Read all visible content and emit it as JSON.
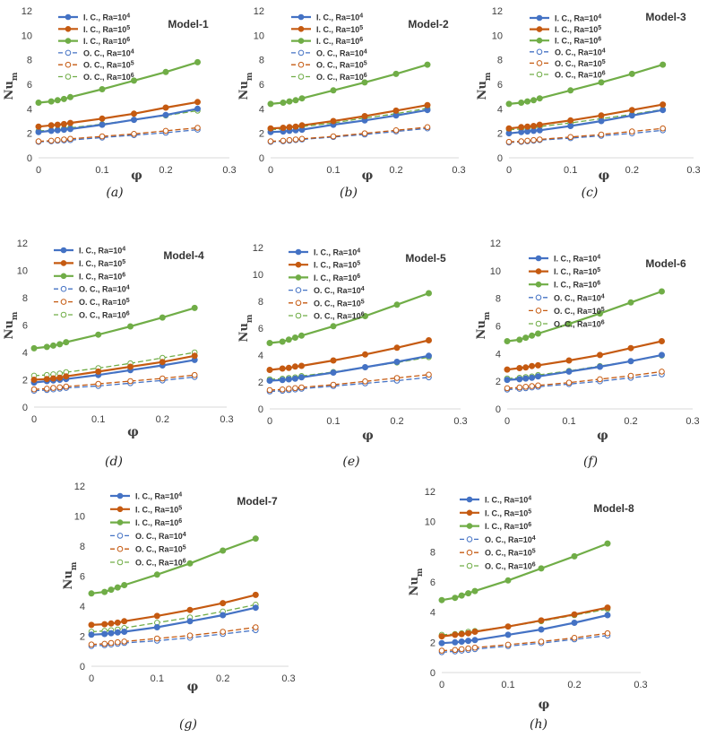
{
  "chart_data": [
    {
      "type": "line",
      "title": "Model-1",
      "caption": "(a)",
      "xlabel": "φ",
      "ylabel": "Nu",
      "ylabel_sub": "m",
      "xlim": [
        0,
        0.3
      ],
      "ylim": [
        0,
        12
      ],
      "xticks": [
        "0",
        "0.1",
        "0.2",
        "0.3"
      ],
      "yticks": [
        "0",
        "2",
        "4",
        "6",
        "8",
        "10",
        "12"
      ],
      "legend_position": "top-left",
      "x": [
        0,
        0.02,
        0.03,
        0.04,
        0.05,
        0.1,
        0.15,
        0.2,
        0.25
      ],
      "series": [
        {
          "name": "I. C.,  Ra=10⁴",
          "values": [
            2.1,
            2.2,
            2.25,
            2.3,
            2.35,
            2.7,
            3.1,
            3.5,
            4.0
          ]
        },
        {
          "name": "I. C.,  Ra=10⁵",
          "values": [
            2.55,
            2.65,
            2.7,
            2.75,
            2.85,
            3.2,
            3.6,
            4.1,
            4.55
          ]
        },
        {
          "name": "I. C.,  Ra=10⁶",
          "values": [
            4.5,
            4.6,
            4.7,
            4.8,
            4.95,
            5.6,
            6.3,
            7.0,
            7.8
          ]
        },
        {
          "name": "O. C., Ra=10⁴",
          "values": [
            1.3,
            1.35,
            1.4,
            1.42,
            1.45,
            1.65,
            1.85,
            2.05,
            2.3
          ]
        },
        {
          "name": "O. C., Ra=10⁵",
          "values": [
            1.35,
            1.4,
            1.45,
            1.5,
            1.55,
            1.75,
            1.95,
            2.2,
            2.45
          ]
        },
        {
          "name": "O. C., Ra=10⁶",
          "values": [
            2.2,
            2.25,
            2.3,
            2.4,
            2.45,
            2.75,
            3.1,
            3.45,
            3.85
          ]
        }
      ]
    },
    {
      "type": "line",
      "title": "Model-2",
      "caption": "(b)",
      "xlabel": "φ",
      "ylabel": "Nu",
      "ylabel_sub": "m",
      "xlim": [
        0,
        0.3
      ],
      "ylim": [
        0,
        12
      ],
      "xticks": [
        "0",
        "0.1",
        "0.2",
        "0.3"
      ],
      "yticks": [
        "0",
        "2",
        "4",
        "6",
        "8",
        "10",
        "12"
      ],
      "legend_position": "top-left",
      "x": [
        0,
        0.02,
        0.03,
        0.04,
        0.05,
        0.1,
        0.15,
        0.2,
        0.25
      ],
      "series": [
        {
          "name": "I. C.,  Ra=10⁴",
          "values": [
            2.1,
            2.15,
            2.2,
            2.25,
            2.3,
            2.7,
            3.05,
            3.45,
            3.9
          ]
        },
        {
          "name": "I. C.,  Ra=10⁵",
          "values": [
            2.4,
            2.45,
            2.5,
            2.55,
            2.65,
            3.0,
            3.4,
            3.85,
            4.3
          ]
        },
        {
          "name": "I. C.,  Ra=10⁶",
          "values": [
            4.4,
            4.5,
            4.6,
            4.7,
            4.85,
            5.5,
            6.15,
            6.85,
            7.6
          ]
        },
        {
          "name": "O. C., Ra=10⁴",
          "values": [
            1.3,
            1.35,
            1.4,
            1.45,
            1.5,
            1.7,
            1.9,
            2.15,
            2.4
          ]
        },
        {
          "name": "O. C., Ra=10⁵",
          "values": [
            1.35,
            1.4,
            1.45,
            1.5,
            1.55,
            1.75,
            2.0,
            2.25,
            2.5
          ]
        },
        {
          "name": "O. C., Ra=10⁶",
          "values": [
            2.3,
            2.35,
            2.45,
            2.5,
            2.55,
            2.85,
            3.25,
            3.6,
            4.05
          ]
        }
      ]
    },
    {
      "type": "line",
      "title": "Model-3",
      "caption": "(c)",
      "xlabel": "φ",
      "ylabel": "Nu",
      "ylabel_sub": "m",
      "xlim": [
        0,
        0.3
      ],
      "ylim": [
        0,
        12
      ],
      "xticks": [
        "0",
        "0.1",
        "0.2",
        "0.3"
      ],
      "yticks": [
        "0",
        "2",
        "4",
        "6",
        "8",
        "10",
        "12"
      ],
      "legend_position": "top-left",
      "x": [
        0,
        0.02,
        0.03,
        0.04,
        0.05,
        0.1,
        0.15,
        0.2,
        0.25
      ],
      "series": [
        {
          "name": "I. C.,  Ra=10⁴",
          "values": [
            2.0,
            2.1,
            2.15,
            2.2,
            2.25,
            2.6,
            3.0,
            3.45,
            3.9
          ]
        },
        {
          "name": "I. C.,  Ra=10⁵",
          "values": [
            2.4,
            2.5,
            2.55,
            2.6,
            2.7,
            3.05,
            3.45,
            3.9,
            4.35
          ]
        },
        {
          "name": "I. C.,  Ra=10⁶",
          "values": [
            4.4,
            4.5,
            4.6,
            4.7,
            4.85,
            5.5,
            6.15,
            6.85,
            7.6
          ]
        },
        {
          "name": "O. C., Ra=10⁴",
          "values": [
            1.25,
            1.3,
            1.35,
            1.4,
            1.45,
            1.6,
            1.8,
            2.0,
            2.25
          ]
        },
        {
          "name": "O. C., Ra=10⁵",
          "values": [
            1.3,
            1.35,
            1.4,
            1.45,
            1.5,
            1.7,
            1.9,
            2.15,
            2.4
          ]
        },
        {
          "name": "O. C., Ra=10⁶",
          "values": [
            2.3,
            2.35,
            2.4,
            2.5,
            2.55,
            2.85,
            3.2,
            3.55,
            3.95
          ]
        }
      ]
    },
    {
      "type": "line",
      "title": "Model-4",
      "caption": "(d)",
      "xlabel": "φ",
      "ylabel": "Nu",
      "ylabel_sub": "m",
      "xlim": [
        0,
        0.3
      ],
      "ylim": [
        0,
        12
      ],
      "xticks": [
        "0",
        "0.1",
        "0.2",
        "0.3"
      ],
      "yticks": [
        "0",
        "2",
        "4",
        "6",
        "8",
        "10",
        "12"
      ],
      "legend_position": "top-left",
      "x": [
        0,
        0.02,
        0.03,
        0.04,
        0.05,
        0.1,
        0.15,
        0.2,
        0.25
      ],
      "series": [
        {
          "name": "I. C.,  Ra=10⁴",
          "values": [
            1.8,
            1.9,
            1.95,
            2.0,
            2.05,
            2.35,
            2.7,
            3.05,
            3.45
          ]
        },
        {
          "name": "I. C.,  Ra=10⁵",
          "values": [
            2.0,
            2.05,
            2.1,
            2.15,
            2.25,
            2.6,
            2.95,
            3.3,
            3.75
          ]
        },
        {
          "name": "I. C.,  Ra=10⁶",
          "values": [
            4.3,
            4.4,
            4.5,
            4.6,
            4.75,
            5.3,
            5.9,
            6.55,
            7.25
          ]
        },
        {
          "name": "O. C., Ra=10⁴",
          "values": [
            1.2,
            1.25,
            1.3,
            1.35,
            1.4,
            1.55,
            1.75,
            1.95,
            2.2
          ]
        },
        {
          "name": "O. C., Ra=10⁵",
          "values": [
            1.3,
            1.35,
            1.4,
            1.45,
            1.5,
            1.7,
            1.9,
            2.1,
            2.35
          ]
        },
        {
          "name": "O. C., Ra=10⁶",
          "values": [
            2.3,
            2.35,
            2.4,
            2.45,
            2.55,
            2.85,
            3.2,
            3.6,
            4.0
          ]
        }
      ]
    },
    {
      "type": "line",
      "title": "Model-5",
      "caption": "(e)",
      "xlabel": "φ",
      "ylabel": "Nu",
      "ylabel_sub": "m",
      "xlim": [
        0,
        0.3
      ],
      "ylim": [
        0,
        12
      ],
      "xticks": [
        "0",
        "0.1",
        "0.2",
        "0.3"
      ],
      "yticks": [
        "0",
        "2",
        "4",
        "6",
        "8",
        "10",
        "12"
      ],
      "legend_position": "top-left",
      "x": [
        0,
        0.02,
        0.03,
        0.04,
        0.05,
        0.1,
        0.15,
        0.2,
        0.25
      ],
      "series": [
        {
          "name": "I. C.,  Ra=10⁴",
          "values": [
            2.1,
            2.15,
            2.2,
            2.25,
            2.35,
            2.7,
            3.1,
            3.5,
            3.95
          ]
        },
        {
          "name": "I. C.,  Ra=10⁵",
          "values": [
            2.9,
            3.0,
            3.05,
            3.15,
            3.2,
            3.6,
            4.05,
            4.55,
            5.1
          ]
        },
        {
          "name": "I. C.,  Ra=10⁶",
          "values": [
            4.9,
            5.0,
            5.15,
            5.3,
            5.45,
            6.15,
            6.9,
            7.75,
            8.6
          ]
        },
        {
          "name": "O. C., Ra=10⁴",
          "values": [
            1.3,
            1.35,
            1.4,
            1.45,
            1.5,
            1.7,
            1.9,
            2.1,
            2.35
          ]
        },
        {
          "name": "O. C., Ra=10⁵",
          "values": [
            1.4,
            1.45,
            1.5,
            1.55,
            1.6,
            1.8,
            2.05,
            2.3,
            2.55
          ]
        },
        {
          "name": "O. C., Ra=10⁶",
          "values": [
            2.2,
            2.25,
            2.3,
            2.35,
            2.45,
            2.75,
            3.1,
            3.45,
            3.85
          ]
        }
      ]
    },
    {
      "type": "line",
      "title": "Model-6",
      "caption": "(f)",
      "xlabel": "φ",
      "ylabel": "Nu",
      "ylabel_sub": "m",
      "xlim": [
        0,
        0.3
      ],
      "ylim": [
        0,
        12
      ],
      "xticks": [
        "0",
        "0.1",
        "0.2",
        "0.3"
      ],
      "yticks": [
        "0",
        "2",
        "4",
        "6",
        "8",
        "10",
        "12"
      ],
      "legend_position": "top-left",
      "x": [
        0,
        0.02,
        0.03,
        0.04,
        0.05,
        0.1,
        0.15,
        0.2,
        0.25
      ],
      "series": [
        {
          "name": "I. C.,  Ra=10⁴",
          "values": [
            2.1,
            2.15,
            2.2,
            2.25,
            2.35,
            2.7,
            3.05,
            3.45,
            3.9
          ]
        },
        {
          "name": "I. C.,  Ra=10⁵",
          "values": [
            2.85,
            2.95,
            3.0,
            3.1,
            3.15,
            3.5,
            3.9,
            4.4,
            4.9
          ]
        },
        {
          "name": "I. C.,  Ra=10⁶",
          "values": [
            4.9,
            5.0,
            5.15,
            5.3,
            5.45,
            6.15,
            6.9,
            7.7,
            8.5
          ]
        },
        {
          "name": "O. C., Ra=10⁴",
          "values": [
            1.4,
            1.45,
            1.5,
            1.55,
            1.6,
            1.8,
            2.0,
            2.25,
            2.5
          ]
        },
        {
          "name": "O. C., Ra=10⁵",
          "values": [
            1.5,
            1.55,
            1.6,
            1.65,
            1.7,
            1.9,
            2.15,
            2.4,
            2.7
          ]
        },
        {
          "name": "O. C., Ra=10⁶",
          "values": [
            2.2,
            2.25,
            2.3,
            2.35,
            2.45,
            2.75,
            3.1,
            3.45,
            3.85
          ]
        }
      ]
    },
    {
      "type": "line",
      "title": "Model-7",
      "caption": "(g)",
      "xlabel": "φ",
      "ylabel": "Nu",
      "ylabel_sub": "m",
      "xlim": [
        0,
        0.3
      ],
      "ylim": [
        0,
        12
      ],
      "xticks": [
        "0",
        "0.1",
        "0.2",
        "0.3"
      ],
      "yticks": [
        "0",
        "2",
        "4",
        "6",
        "8",
        "10",
        "12"
      ],
      "legend_position": "top-left",
      "x": [
        0,
        0.02,
        0.03,
        0.04,
        0.05,
        0.1,
        0.15,
        0.2,
        0.25
      ],
      "series": [
        {
          "name": "I. C.,  Ra=10⁴",
          "values": [
            2.1,
            2.15,
            2.2,
            2.25,
            2.3,
            2.6,
            3.0,
            3.4,
            3.9
          ]
        },
        {
          "name": "I. C.,  Ra=10⁵",
          "values": [
            2.75,
            2.8,
            2.85,
            2.9,
            3.0,
            3.35,
            3.75,
            4.2,
            4.75
          ]
        },
        {
          "name": "I. C.,  Ra=10⁶",
          "values": [
            4.85,
            4.95,
            5.1,
            5.25,
            5.4,
            6.1,
            6.85,
            7.7,
            8.5
          ]
        },
        {
          "name": "O. C., Ra=10⁴",
          "values": [
            1.35,
            1.4,
            1.45,
            1.5,
            1.55,
            1.7,
            1.9,
            2.15,
            2.4
          ]
        },
        {
          "name": "O. C., Ra=10⁵",
          "values": [
            1.45,
            1.5,
            1.55,
            1.6,
            1.65,
            1.85,
            2.05,
            2.3,
            2.6
          ]
        },
        {
          "name": "O. C., Ra=10⁶",
          "values": [
            2.3,
            2.35,
            2.4,
            2.45,
            2.55,
            2.9,
            3.25,
            3.65,
            4.1
          ]
        }
      ]
    },
    {
      "type": "line",
      "title": "Model-8",
      "caption": "(h)",
      "xlabel": "φ",
      "ylabel": "Nu",
      "ylabel_sub": "m",
      "xlim": [
        0,
        0.3
      ],
      "ylim": [
        0,
        12
      ],
      "xticks": [
        "0",
        "0.1",
        "0.2",
        "0.3"
      ],
      "yticks": [
        "0",
        "2",
        "4",
        "6",
        "8",
        "10",
        "12"
      ],
      "legend_position": "top-left",
      "x": [
        0,
        0.02,
        0.03,
        0.04,
        0.05,
        0.1,
        0.15,
        0.2,
        0.25
      ],
      "series": [
        {
          "name": "I. C.,  Ra=10⁴",
          "values": [
            1.95,
            2.0,
            2.05,
            2.1,
            2.15,
            2.5,
            2.85,
            3.3,
            3.8
          ]
        },
        {
          "name": "I. C.,  Ra=10⁵",
          "values": [
            2.4,
            2.5,
            2.55,
            2.6,
            2.7,
            3.05,
            3.45,
            3.85,
            4.3
          ]
        },
        {
          "name": "I. C.,  Ra=10⁶",
          "values": [
            4.8,
            4.95,
            5.1,
            5.25,
            5.4,
            6.1,
            6.9,
            7.7,
            8.55
          ]
        },
        {
          "name": "O. C., Ra=10⁴",
          "values": [
            1.35,
            1.4,
            1.45,
            1.5,
            1.55,
            1.75,
            1.95,
            2.2,
            2.45
          ]
        },
        {
          "name": "O. C., Ra=10⁵",
          "values": [
            1.45,
            1.5,
            1.55,
            1.6,
            1.65,
            1.85,
            2.05,
            2.3,
            2.6
          ]
        },
        {
          "name": "O. C., Ra=10⁶",
          "values": [
            2.5,
            2.55,
            2.6,
            2.7,
            2.75,
            3.05,
            3.4,
            3.8,
            4.2
          ]
        }
      ]
    }
  ],
  "series_styles": [
    {
      "color": "#4472C4",
      "dash": "none",
      "marker": "filled"
    },
    {
      "color": "#C55A11",
      "dash": "none",
      "marker": "filled"
    },
    {
      "color": "#70AD47",
      "dash": "none",
      "marker": "filled"
    },
    {
      "color": "#4472C4",
      "dash": "dashed",
      "marker": "open"
    },
    {
      "color": "#C55A11",
      "dash": "dashed",
      "marker": "open"
    },
    {
      "color": "#70AD47",
      "dash": "dashed",
      "marker": "open"
    }
  ]
}
